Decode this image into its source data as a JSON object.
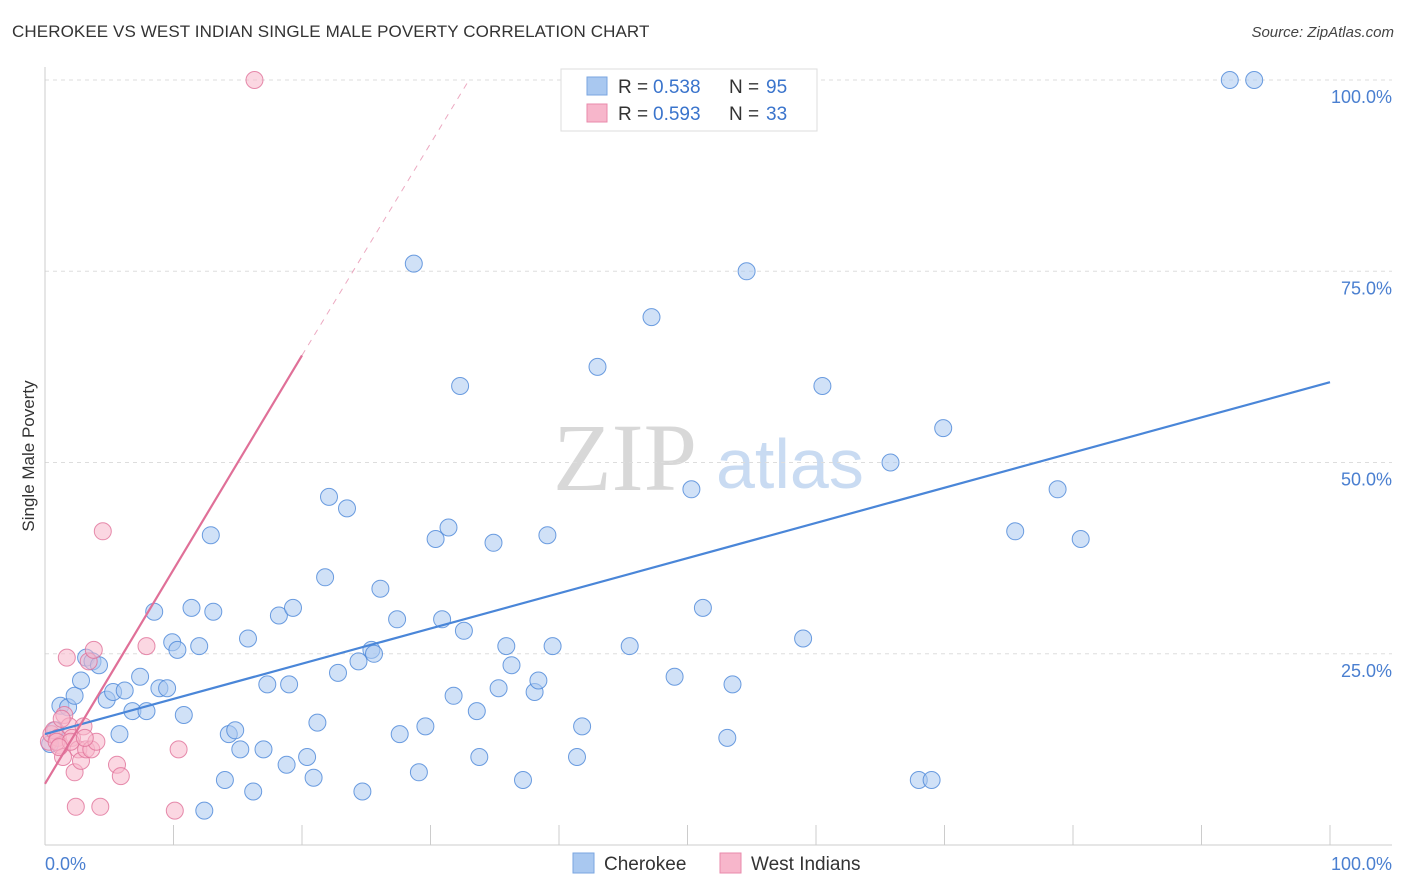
{
  "title": "CHEROKEE VS WEST INDIAN SINGLE MALE POVERTY CORRELATION CHART",
  "source": "Source: ZipAtlas.com",
  "watermark": {
    "zip": "ZIP",
    "atlas": "atlas"
  },
  "legend": {
    "rows": [
      {
        "r_label": "R =",
        "r_value": "0.538",
        "n_label": "N =",
        "n_value": "95",
        "color": "#a9c8f0"
      },
      {
        "r_label": "R =",
        "r_value": "0.593",
        "n_label": "N =",
        "n_value": "33",
        "color": "#f7b6cb"
      }
    ]
  },
  "chart_data": {
    "type": "scatter",
    "title": "CHEROKEE VS WEST INDIAN SINGLE MALE POVERTY CORRELATION CHART",
    "xlabel": "",
    "ylabel": "Single Male Poverty",
    "xlim": [
      0,
      100
    ],
    "ylim": [
      0,
      100
    ],
    "x_tick_labels": [
      "0.0%",
      "100.0%"
    ],
    "y_ticks": [
      25,
      50,
      75,
      100
    ],
    "y_tick_labels": [
      "25.0%",
      "50.0%",
      "75.0%",
      "100.0%"
    ],
    "grid": true,
    "series": [
      {
        "name": "Cherokee",
        "color": "#4a86d8",
        "fill": "#a9c8f0",
        "trend": {
          "x0": 0,
          "y0": 14.5,
          "x1": 100,
          "y1": 60.5,
          "dashed_from": null
        },
        "points": [
          [
            0.4,
            13.2
          ],
          [
            0.8,
            15.0
          ],
          [
            1.2,
            18.2
          ],
          [
            1.8,
            18.0
          ],
          [
            2.3,
            19.5
          ],
          [
            2.8,
            21.5
          ],
          [
            3.2,
            24.5
          ],
          [
            3.7,
            24.0
          ],
          [
            4.2,
            23.5
          ],
          [
            4.8,
            19.0
          ],
          [
            5.3,
            20.0
          ],
          [
            5.8,
            14.5
          ],
          [
            6.2,
            20.2
          ],
          [
            6.8,
            17.5
          ],
          [
            7.4,
            22.0
          ],
          [
            7.9,
            17.5
          ],
          [
            8.5,
            30.5
          ],
          [
            8.9,
            20.5
          ],
          [
            9.5,
            20.5
          ],
          [
            9.9,
            26.5
          ],
          [
            10.3,
            25.5
          ],
          [
            10.8,
            17.0
          ],
          [
            11.4,
            31.0
          ],
          [
            12.0,
            26.0
          ],
          [
            12.4,
            4.5
          ],
          [
            12.9,
            40.5
          ],
          [
            13.1,
            30.5
          ],
          [
            14.0,
            8.5
          ],
          [
            14.3,
            14.5
          ],
          [
            14.8,
            15.0
          ],
          [
            15.2,
            12.5
          ],
          [
            15.8,
            27.0
          ],
          [
            16.2,
            7.0
          ],
          [
            17.0,
            12.5
          ],
          [
            17.3,
            21.0
          ],
          [
            18.2,
            30.0
          ],
          [
            18.8,
            10.5
          ],
          [
            19.0,
            21.0
          ],
          [
            19.3,
            31.0
          ],
          [
            20.4,
            11.5
          ],
          [
            20.9,
            8.8
          ],
          [
            21.2,
            16.0
          ],
          [
            21.8,
            35.0
          ],
          [
            22.1,
            45.5
          ],
          [
            22.8,
            22.5
          ],
          [
            23.5,
            44.0
          ],
          [
            24.4,
            24.0
          ],
          [
            24.7,
            7.0
          ],
          [
            25.4,
            25.5
          ],
          [
            25.6,
            25.0
          ],
          [
            26.1,
            33.5
          ],
          [
            27.4,
            29.5
          ],
          [
            27.6,
            14.5
          ],
          [
            28.7,
            76.0
          ],
          [
            29.1,
            9.5
          ],
          [
            29.6,
            15.5
          ],
          [
            30.4,
            40.0
          ],
          [
            30.9,
            29.5
          ],
          [
            31.4,
            41.5
          ],
          [
            31.8,
            19.5
          ],
          [
            32.3,
            60.0
          ],
          [
            32.6,
            28.0
          ],
          [
            33.6,
            17.5
          ],
          [
            33.8,
            11.5
          ],
          [
            34.9,
            39.5
          ],
          [
            35.3,
            20.5
          ],
          [
            35.9,
            26.0
          ],
          [
            36.3,
            23.5
          ],
          [
            37.2,
            8.5
          ],
          [
            38.1,
            20.0
          ],
          [
            38.4,
            21.5
          ],
          [
            39.1,
            40.5
          ],
          [
            39.5,
            26.0
          ],
          [
            41.4,
            11.5
          ],
          [
            41.8,
            15.5
          ],
          [
            43.0,
            62.5
          ],
          [
            45.5,
            26.0
          ],
          [
            47.2,
            69.0
          ],
          [
            49.0,
            22.0
          ],
          [
            50.3,
            46.5
          ],
          [
            51.2,
            31.0
          ],
          [
            53.1,
            14.0
          ],
          [
            53.5,
            21.0
          ],
          [
            54.6,
            75.0
          ],
          [
            59.0,
            27.0
          ],
          [
            60.5,
            60.0
          ],
          [
            65.8,
            50.0
          ],
          [
            68.0,
            8.5
          ],
          [
            69.0,
            8.5
          ],
          [
            69.9,
            54.5
          ],
          [
            75.5,
            41.0
          ],
          [
            78.8,
            46.5
          ],
          [
            80.6,
            40.0
          ],
          [
            92.2,
            100.0
          ],
          [
            94.1,
            100.0
          ]
        ]
      },
      {
        "name": "West Indians",
        "color": "#e07098",
        "fill": "#f7b6cb",
        "trend": {
          "x0": 0,
          "y0": 8.0,
          "x1": 20,
          "y1": 64.0,
          "dashed_to_x": 33,
          "dashed_to_y": 100
        },
        "points": [
          [
            0.3,
            13.5
          ],
          [
            0.5,
            14.5
          ],
          [
            0.7,
            15.0
          ],
          [
            1.0,
            14.0
          ],
          [
            1.2,
            13.0
          ],
          [
            1.4,
            11.5
          ],
          [
            1.5,
            17.0
          ],
          [
            1.7,
            24.5
          ],
          [
            1.9,
            15.5
          ],
          [
            2.1,
            14.0
          ],
          [
            2.3,
            9.5
          ],
          [
            2.4,
            5.0
          ],
          [
            2.6,
            12.5
          ],
          [
            2.8,
            11.0
          ],
          [
            3.0,
            15.5
          ],
          [
            3.2,
            12.5
          ],
          [
            3.4,
            24.0
          ],
          [
            3.6,
            12.5
          ],
          [
            3.8,
            25.5
          ],
          [
            4.0,
            13.5
          ],
          [
            4.3,
            5.0
          ],
          [
            4.5,
            41.0
          ],
          [
            5.6,
            10.5
          ],
          [
            5.9,
            9.0
          ],
          [
            7.9,
            26.0
          ],
          [
            10.1,
            4.5
          ],
          [
            10.4,
            12.5
          ],
          [
            16.3,
            100.0
          ],
          [
            0.9,
            13.5
          ],
          [
            1.3,
            16.5
          ],
          [
            2.0,
            13.5
          ],
          [
            3.1,
            14.0
          ],
          [
            1.1,
            12.8
          ]
        ]
      }
    ]
  },
  "bottom_legend": {
    "items": [
      {
        "label": "Cherokee",
        "color": "#a9c8f0"
      },
      {
        "label": "West Indians",
        "color": "#f7b6cb"
      }
    ]
  }
}
